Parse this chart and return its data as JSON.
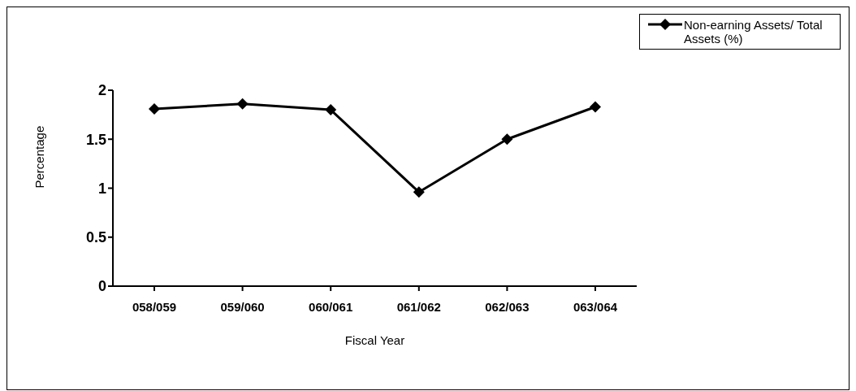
{
  "chart_data": {
    "type": "line",
    "xlabel": "Fiscal Year",
    "ylabel": "Percentage",
    "categories": [
      "058/059",
      "059/060",
      "060/061",
      "061/062",
      "062/063",
      "063/064"
    ],
    "series": [
      {
        "name": "Non-earning Assets/ Total Assets (%)",
        "color": "#000000",
        "values": [
          1.81,
          1.86,
          1.8,
          0.96,
          1.5,
          1.83
        ]
      }
    ],
    "ylim": [
      0,
      2
    ],
    "yticks": [
      0,
      0.5,
      1,
      1.5,
      2
    ],
    "grid": false,
    "legend": "top right",
    "marker": "diamond",
    "line_style": "solid"
  }
}
